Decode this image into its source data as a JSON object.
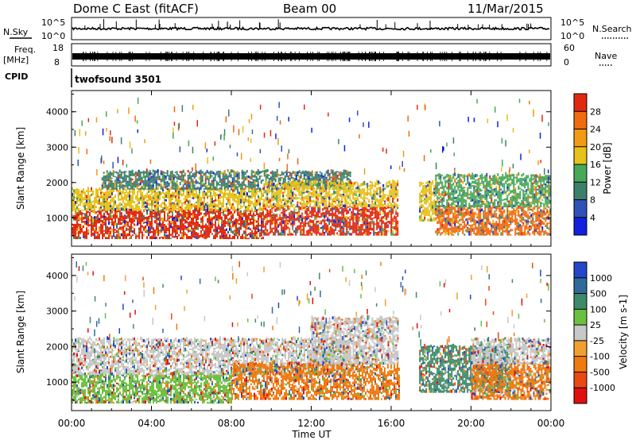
{
  "header": {
    "station": "Dome C East (fitACF)",
    "beam": "Beam 00",
    "date": "11/Mar/2015"
  },
  "strips": {
    "nsky_label": "N.Sky",
    "nsky_top": "10^5",
    "nsky_bottom": "10^0",
    "nsearch_label": "N.Search",
    "nsearch_top": "10^5",
    "nsearch_bottom": "10^0",
    "freq_label_1": "Freq.",
    "freq_label_2": "[MHz]",
    "freq_top": "18",
    "freq_bottom": "8",
    "nave_label": "Nave",
    "nave_top": "60",
    "nave_bottom": "0",
    "cpid_label": "CPID",
    "cpid_value": "twofsound 3501"
  },
  "chart_data": [
    {
      "type": "heatmap",
      "panel": "power",
      "ylabel": "Slant Range [km]",
      "xlabel": "",
      "y_ticks": [
        1000,
        2000,
        3000,
        4000
      ],
      "ylim": [
        200,
        4600
      ],
      "x_ticks": [
        "00:00",
        "04:00",
        "08:00",
        "12:00",
        "16:00",
        "20:00",
        "00:00"
      ],
      "xlim_hours": [
        0,
        24
      ],
      "colorbar": {
        "label": "Power [dB]",
        "ticks": [
          "4",
          "8",
          "12",
          "16",
          "20",
          "24",
          "28"
        ],
        "colors": [
          "#1420e0",
          "#2f52b8",
          "#3d7f6a",
          "#48a85a",
          "#e6c21a",
          "#f39a14",
          "#f06a10",
          "#e02a10"
        ]
      },
      "echo_regions_hours_km": [
        {
          "from": 0.0,
          "to": 9.6,
          "range": [
            400,
            1200
          ],
          "level": "28"
        },
        {
          "from": 0.0,
          "to": 9.6,
          "range": [
            1200,
            1800
          ],
          "level": "16"
        },
        {
          "from": 1.5,
          "to": 14.0,
          "range": [
            1800,
            2300
          ],
          "level": "8"
        },
        {
          "from": 9.6,
          "to": 16.4,
          "range": [
            500,
            1300
          ],
          "level": "28"
        },
        {
          "from": 9.6,
          "to": 16.4,
          "range": [
            1300,
            2000
          ],
          "level": "16"
        },
        {
          "from": 17.4,
          "to": 18.2,
          "range": [
            900,
            2000
          ],
          "level": "16"
        },
        {
          "from": 18.2,
          "to": 24.0,
          "range": [
            500,
            1300
          ],
          "level": "24"
        },
        {
          "from": 18.2,
          "to": 24.0,
          "range": [
            1300,
            2200
          ],
          "level": "12"
        }
      ]
    },
    {
      "type": "heatmap",
      "panel": "velocity",
      "ylabel": "Slant Range [km]",
      "xlabel": "Time UT",
      "y_ticks": [
        1000,
        2000,
        3000,
        4000
      ],
      "ylim": [
        200,
        4600
      ],
      "x_ticks": [
        "00:00",
        "04:00",
        "08:00",
        "12:00",
        "16:00",
        "20:00",
        "00:00"
      ],
      "xlim_hours": [
        0,
        24
      ],
      "colorbar": {
        "label": "Velocity [m s-1]",
        "ticks": [
          "1000",
          "500",
          "100",
          "25",
          "-25",
          "-100",
          "-500",
          "-1000"
        ],
        "colors": [
          "#2446c8",
          "#2f6a9a",
          "#3d8a6a",
          "#6cc040",
          "#c8c8c8",
          "#f0a030",
          "#f07a10",
          "#e84a10",
          "#e01010"
        ]
      },
      "echo_regions_hours_km": [
        {
          "from": 0.0,
          "to": 8.0,
          "range": [
            400,
            1200
          ],
          "level": "100"
        },
        {
          "from": 0.0,
          "to": 14.0,
          "range": [
            1200,
            2200
          ],
          "level": "25"
        },
        {
          "from": 8.0,
          "to": 16.4,
          "range": [
            500,
            1500
          ],
          "level": "-100"
        },
        {
          "from": 12.0,
          "to": 16.4,
          "range": [
            1500,
            2800
          ],
          "level": "25"
        },
        {
          "from": 17.4,
          "to": 22.0,
          "range": [
            700,
            2000
          ],
          "level": "500"
        },
        {
          "from": 20.0,
          "to": 24.0,
          "range": [
            500,
            1500
          ],
          "level": "-100"
        },
        {
          "from": 20.0,
          "to": 24.0,
          "range": [
            1500,
            2200
          ],
          "level": "25"
        }
      ]
    }
  ]
}
